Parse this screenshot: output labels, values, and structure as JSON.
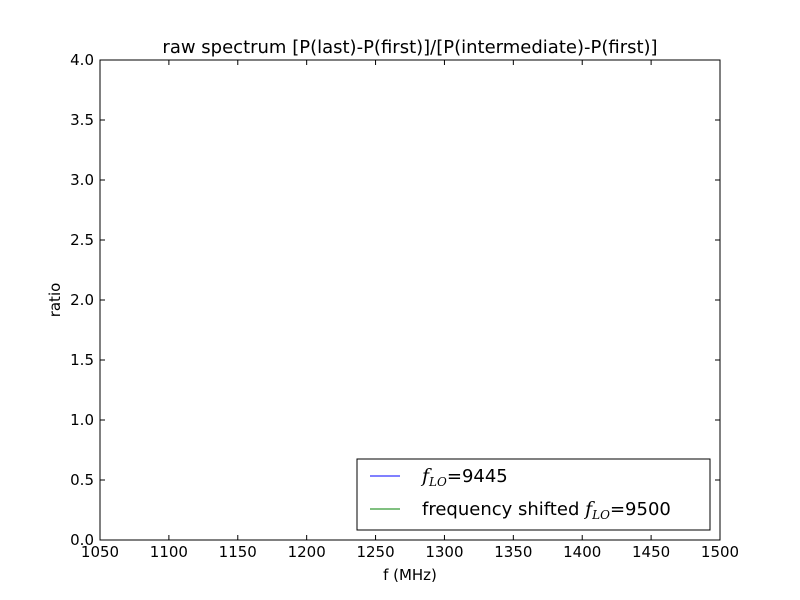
{
  "chart_data": {
    "type": "line",
    "title": "raw spectrum [P(last)-P(first)]/[P(intermediate)-P(first)]",
    "xlabel": "f (MHz)",
    "ylabel": "ratio",
    "xlim": [
      1050,
      1500
    ],
    "ylim": [
      0.0,
      4.0
    ],
    "xticks": [
      "1050",
      "1100",
      "1150",
      "1200",
      "1250",
      "1300",
      "1350",
      "1400",
      "1450",
      "1500"
    ],
    "yticks": [
      "0.0",
      "0.5",
      "1.0",
      "1.5",
      "2.0",
      "2.5",
      "3.0",
      "3.5",
      "4.0"
    ],
    "grid": false,
    "legend_position": "lower-right",
    "series": [
      {
        "legend_prefix": "",
        "legend_math": "f",
        "legend_math_sub": "LO",
        "legend_suffix": "=9445",
        "color": "#0000ff",
        "x": [],
        "y": []
      },
      {
        "legend_prefix": "frequency shifted ",
        "legend_math": "f",
        "legend_math_sub": "LO",
        "legend_suffix": "=9500",
        "color": "#008000",
        "x": [],
        "y": []
      }
    ]
  }
}
